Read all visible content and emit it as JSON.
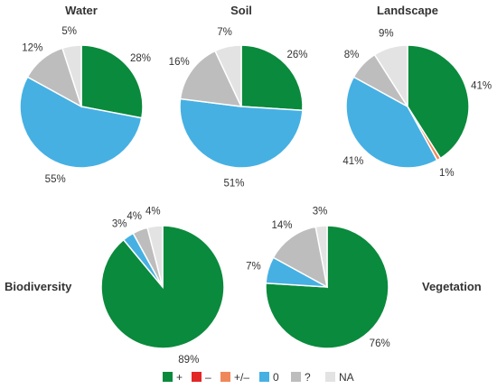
{
  "chart_data": {
    "type": "pie",
    "legend": [
      {
        "key": "plus",
        "label": "+",
        "color": "#0a8a3c"
      },
      {
        "key": "minus",
        "label": "–",
        "color": "#e32626"
      },
      {
        "key": "mixed",
        "label": "+/–",
        "color": "#f0875a"
      },
      {
        "key": "zero",
        "label": "0",
        "color": "#46b0e3"
      },
      {
        "key": "unknown",
        "label": "?",
        "color": "#bdbdbd"
      },
      {
        "key": "na",
        "label": "NA",
        "color": "#e3e3e3"
      }
    ],
    "charts": [
      {
        "title": "Water",
        "slices": [
          {
            "key": "plus",
            "value": 28,
            "label": "28%"
          },
          {
            "key": "zero",
            "value": 55,
            "label": "55%"
          },
          {
            "key": "unknown",
            "value": 12,
            "label": "12%"
          },
          {
            "key": "na",
            "value": 5,
            "label": "5%"
          }
        ]
      },
      {
        "title": "Soil",
        "slices": [
          {
            "key": "plus",
            "value": 26,
            "label": "26%"
          },
          {
            "key": "zero",
            "value": 51,
            "label": "51%"
          },
          {
            "key": "unknown",
            "value": 16,
            "label": "16%"
          },
          {
            "key": "na",
            "value": 7,
            "label": "7%"
          }
        ]
      },
      {
        "title": "Landscape",
        "slices": [
          {
            "key": "plus",
            "value": 41,
            "label": "41%"
          },
          {
            "key": "mixed",
            "value": 1,
            "label": "1%"
          },
          {
            "key": "zero",
            "value": 41,
            "label": "41%"
          },
          {
            "key": "unknown",
            "value": 8,
            "label": "8%"
          },
          {
            "key": "na",
            "value": 9,
            "label": "9%"
          }
        ]
      },
      {
        "title": "Biodiversity",
        "slices": [
          {
            "key": "plus",
            "value": 89,
            "label": "89%"
          },
          {
            "key": "zero",
            "value": 3,
            "label": "3%"
          },
          {
            "key": "unknown",
            "value": 4,
            "label": "4%"
          },
          {
            "key": "na",
            "value": 4,
            "label": "4%"
          }
        ]
      },
      {
        "title": "Vegetation",
        "slices": [
          {
            "key": "plus",
            "value": 76,
            "label": "76%"
          },
          {
            "key": "zero",
            "value": 7,
            "label": "7%"
          },
          {
            "key": "unknown",
            "value": 14,
            "label": "14%"
          },
          {
            "key": "na",
            "value": 3,
            "label": "3%"
          }
        ]
      }
    ]
  }
}
